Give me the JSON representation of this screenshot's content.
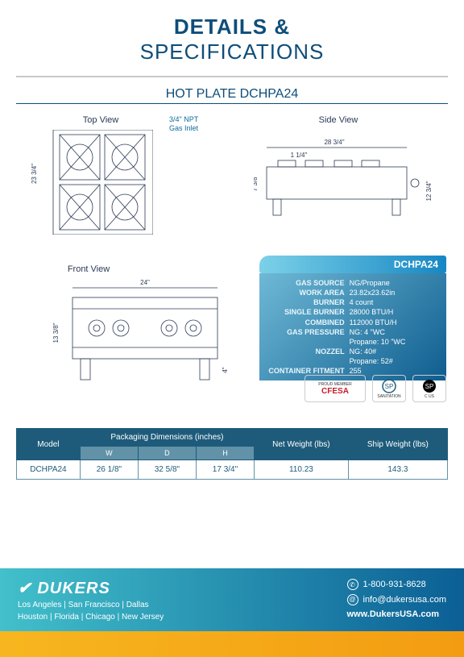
{
  "header": {
    "title1": "DETAILS &",
    "title2": "SPECIFICATIONS"
  },
  "product_title": "HOT PLATE DCHPA24",
  "views": {
    "top": "Top View",
    "side": "Side View",
    "front": "Front View",
    "gas_inlet_line1": "3/4\" NPT",
    "gas_inlet_line2": "Gas Inlet"
  },
  "dimensions": {
    "top_depth": "23 3/4\"",
    "side_width": "28  3/4\"",
    "side_front_gap": "1  1/4\"",
    "side_height": "7  3/8\"",
    "side_total_h": "12  3/4\"",
    "front_width": "24\"",
    "front_height": "13 3/8\"",
    "front_legs": "4\""
  },
  "spec_box": {
    "header": "DCHPA24",
    "rows": [
      {
        "label": "GAS SOURCE",
        "value": "NG/Propane"
      },
      {
        "label": "WORK AREA",
        "value": "23.82x23.62in"
      },
      {
        "label": "BURNER",
        "value": "4 count"
      },
      {
        "label": "SINGLE BURNER",
        "value": "28000 BTU/H"
      },
      {
        "label": "COMBINED",
        "value": "112000 BTU/H"
      },
      {
        "label": "GAS PRESSURE",
        "value": "NG: 4 \"WC"
      },
      {
        "label": "",
        "value": "Propane: 10 \"WC"
      },
      {
        "label": "NOZZEL",
        "value": "NG: 40#"
      },
      {
        "label": "",
        "value": "Propane: 52#"
      },
      {
        "label": "CONTAINER FITMENT",
        "value": "255"
      }
    ]
  },
  "certs": {
    "cfesa_top": "PROUD MEMBER",
    "cfesa": "CFESA",
    "cfesa_sub": "Commercial Food Equipment Service Association",
    "csa1": "SANITATION",
    "csa2": "C       US"
  },
  "pkg_table": {
    "head_model": "Model",
    "head_pkg": "Packaging Dimensions (inches)",
    "head_net": "Net Weight (lbs)",
    "head_ship": "Ship Weight (lbs)",
    "sub_w": "W",
    "sub_d": "D",
    "sub_h": "H",
    "row": {
      "model": "DCHPA24",
      "w": "26 1/8\"",
      "d": "32 5/8\"",
      "h": "17 3/4\"",
      "net": "110.23",
      "ship": "143.3"
    }
  },
  "footer": {
    "brand": "DUKERS",
    "loc1": "Los Angeles | San Francisco | Dallas",
    "loc2": "Houston | Florida | Chicago | New Jersey",
    "phone": "1-800-931-8628",
    "email": "info@dukersusa.com",
    "web": "www.DukersUSA.com"
  },
  "colors": {
    "brand_blue": "#0e4d7a",
    "spec_grad_a": "#6fb9d6",
    "spec_grad_b": "#0e5d8f",
    "footer_grad_a": "#42c0cb",
    "footer_grad_b": "#0b5f95",
    "table_head": "#1e5b7a",
    "table_sub": "#6192a8",
    "bottom_bar": "#f7b61f"
  }
}
